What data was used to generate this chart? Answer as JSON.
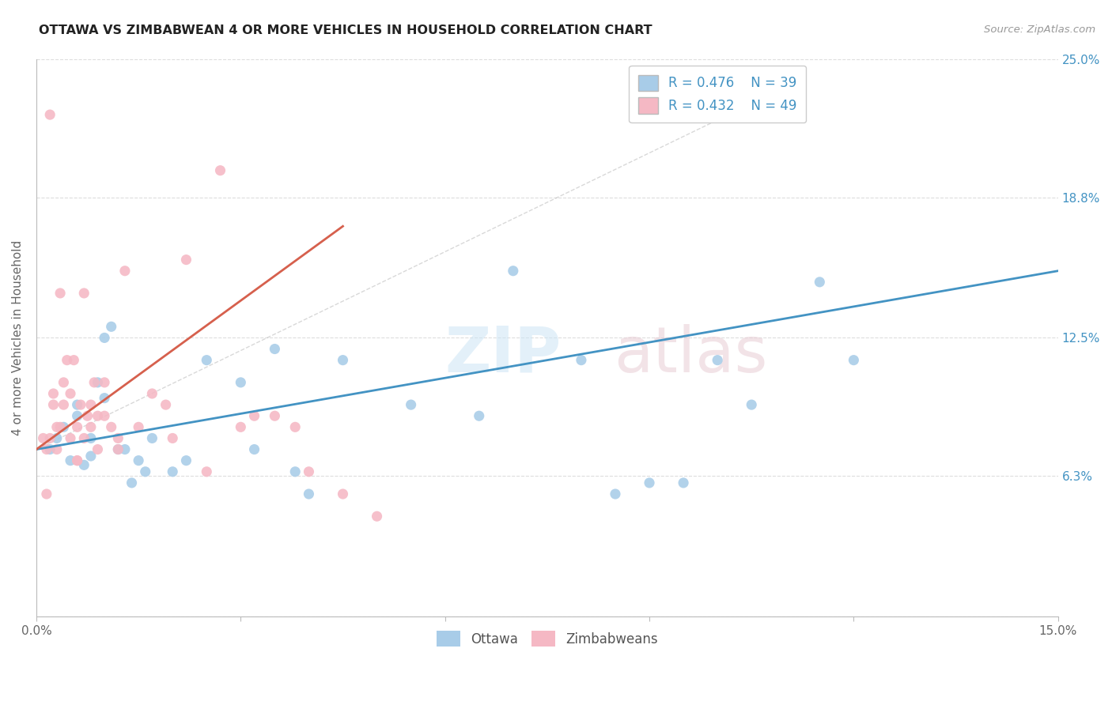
{
  "title": "OTTAWA VS ZIMBABWEAN 4 OR MORE VEHICLES IN HOUSEHOLD CORRELATION CHART",
  "source": "Source: ZipAtlas.com",
  "ylabel": "4 or more Vehicles in Household",
  "xlim": [
    0.0,
    15.0
  ],
  "ylim": [
    0.0,
    25.0
  ],
  "legend_r_ottawa": "0.476",
  "legend_n_ottawa": "39",
  "legend_r_zimb": "0.432",
  "legend_n_zimb": "49",
  "ottawa_color": "#a8cce8",
  "zimb_color": "#f5b8c4",
  "ottawa_line_color": "#4393c3",
  "zimb_line_color": "#d6604d",
  "background_color": "#ffffff",
  "ottawa_x": [
    0.2,
    0.3,
    0.4,
    0.5,
    0.6,
    0.7,
    0.8,
    0.9,
    1.0,
    1.1,
    1.2,
    1.4,
    1.5,
    1.7,
    2.0,
    2.2,
    2.5,
    3.0,
    3.2,
    3.5,
    3.8,
    4.0,
    4.5,
    5.5,
    6.5,
    7.0,
    8.0,
    8.5,
    9.0,
    9.5,
    10.0,
    10.5,
    11.5,
    12.0,
    0.6,
    0.8,
    1.0,
    1.3,
    1.6
  ],
  "ottawa_y": [
    7.5,
    8.0,
    8.5,
    7.0,
    9.0,
    6.8,
    7.2,
    10.5,
    9.8,
    13.0,
    7.5,
    6.0,
    7.0,
    8.0,
    6.5,
    7.0,
    11.5,
    10.5,
    7.5,
    12.0,
    6.5,
    5.5,
    11.5,
    9.5,
    9.0,
    15.5,
    11.5,
    5.5,
    6.0,
    6.0,
    11.5,
    9.5,
    15.0,
    11.5,
    9.5,
    8.0,
    12.5,
    7.5,
    6.5
  ],
  "zimb_x": [
    0.1,
    0.15,
    0.2,
    0.25,
    0.3,
    0.35,
    0.4,
    0.45,
    0.5,
    0.55,
    0.6,
    0.65,
    0.7,
    0.75,
    0.8,
    0.85,
    0.9,
    1.0,
    1.1,
    1.2,
    1.3,
    1.5,
    1.7,
    1.9,
    2.0,
    2.2,
    2.5,
    2.7,
    3.0,
    3.2,
    3.5,
    3.8,
    4.0,
    4.5,
    5.0,
    0.2,
    0.3,
    0.4,
    0.5,
    0.6,
    0.15,
    0.25,
    0.35,
    0.6,
    0.7,
    0.8,
    0.9,
    1.0,
    1.2
  ],
  "zimb_y": [
    8.0,
    7.5,
    22.5,
    9.5,
    8.5,
    14.5,
    10.5,
    11.5,
    10.0,
    11.5,
    8.5,
    9.5,
    14.5,
    9.0,
    9.5,
    10.5,
    9.0,
    10.5,
    8.5,
    7.5,
    15.5,
    8.5,
    10.0,
    9.5,
    8.0,
    16.0,
    6.5,
    20.0,
    8.5,
    9.0,
    9.0,
    8.5,
    6.5,
    5.5,
    4.5,
    8.0,
    7.5,
    9.5,
    8.0,
    7.0,
    5.5,
    10.0,
    8.5,
    7.0,
    8.0,
    8.5,
    7.5,
    9.0,
    8.0
  ],
  "ref_line_x": [
    0.0,
    10.5
  ],
  "ref_line_y": [
    7.5,
    23.0
  ]
}
